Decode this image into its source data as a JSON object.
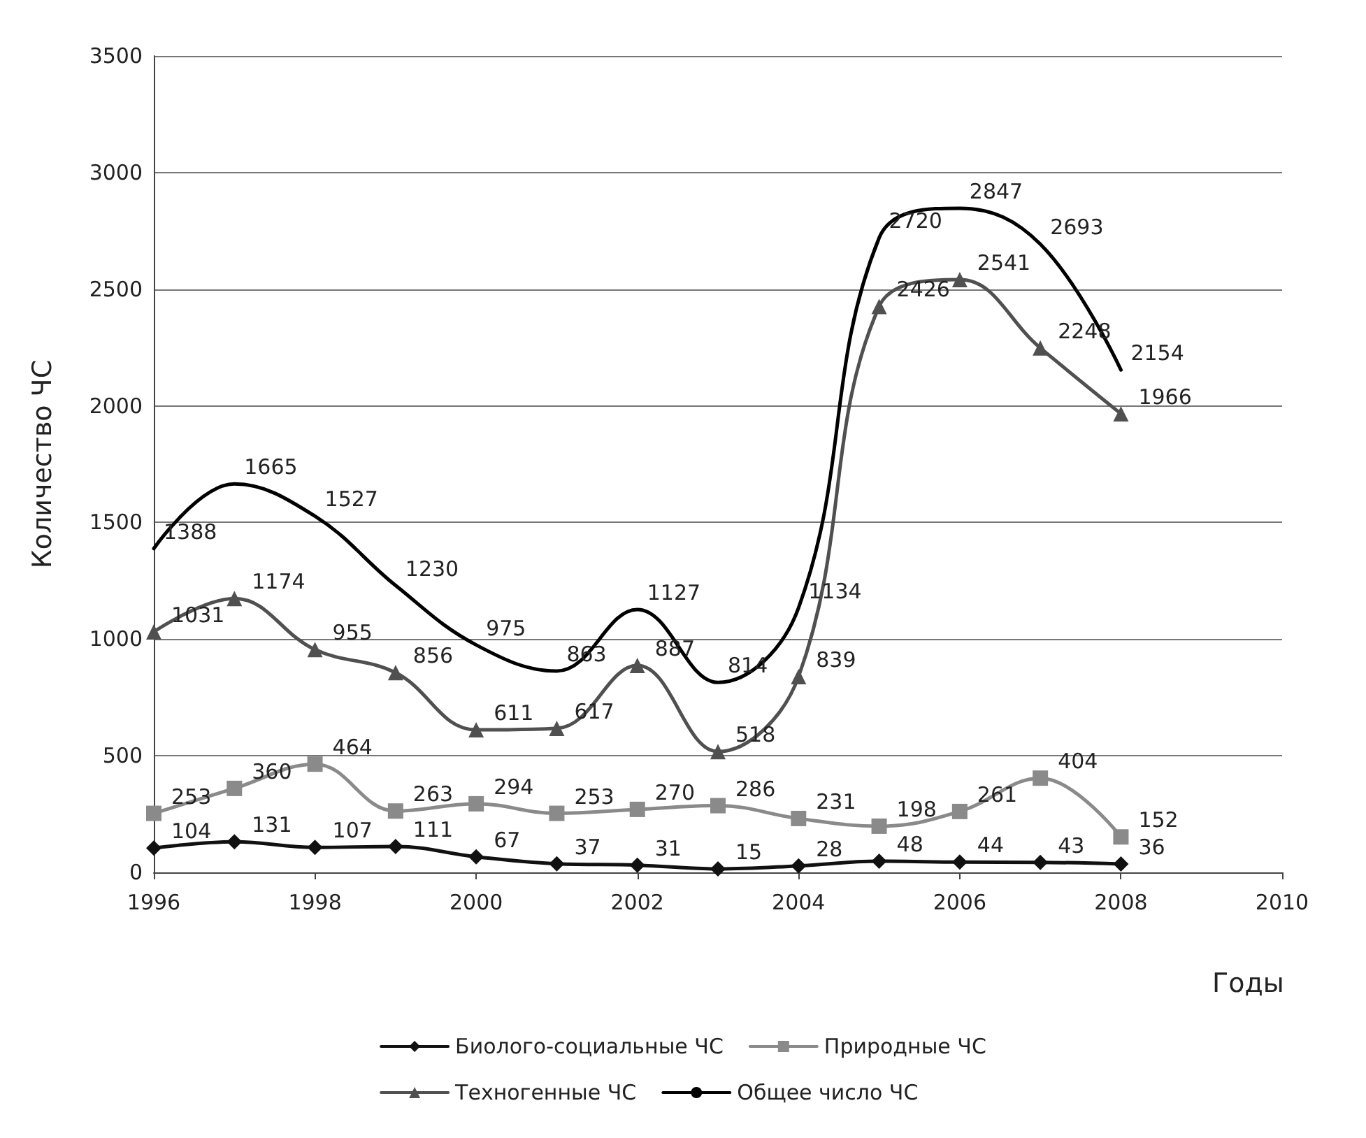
{
  "chart_data": {
    "type": "line",
    "xlabel": "Годы",
    "ylabel": "Количество ЧС",
    "x": [
      1996,
      1997,
      1998,
      1999,
      2000,
      2001,
      2002,
      2003,
      2004,
      2005,
      2006,
      2007,
      2008
    ],
    "xlim": [
      1996,
      2010
    ],
    "xticks": [
      1996,
      1998,
      2000,
      2002,
      2004,
      2006,
      2008,
      2010
    ],
    "ylim": [
      0,
      3500
    ],
    "yticks": [
      0,
      500,
      1000,
      1500,
      2000,
      2500,
      3000,
      3500
    ],
    "grid": "y",
    "legend": "bottom",
    "data_labels": true,
    "series": [
      {
        "name": "Биолого-социальные ЧС",
        "color": "#111111",
        "marker": "diamond",
        "values": [
          104,
          131,
          107,
          111,
          67,
          37,
          31,
          15,
          28,
          48,
          44,
          43,
          36
        ]
      },
      {
        "name": "Природные ЧС",
        "color": "#8a8a8a",
        "marker": "square",
        "values": [
          253,
          360,
          464,
          263,
          294,
          253,
          270,
          286,
          231,
          198,
          261,
          404,
          152
        ]
      },
      {
        "name": "Техногенные ЧС",
        "color": "#505050",
        "marker": "triangle",
        "values": [
          1031,
          1174,
          955,
          856,
          611,
          617,
          887,
          518,
          839,
          2426,
          2541,
          2248,
          1966
        ]
      },
      {
        "name": "Общее число ЧС",
        "color": "#000000",
        "marker": "none",
        "values": [
          1388,
          1665,
          1527,
          1230,
          975,
          863,
          1127,
          814,
          1134,
          2720,
          2847,
          2693,
          2154
        ]
      }
    ]
  }
}
